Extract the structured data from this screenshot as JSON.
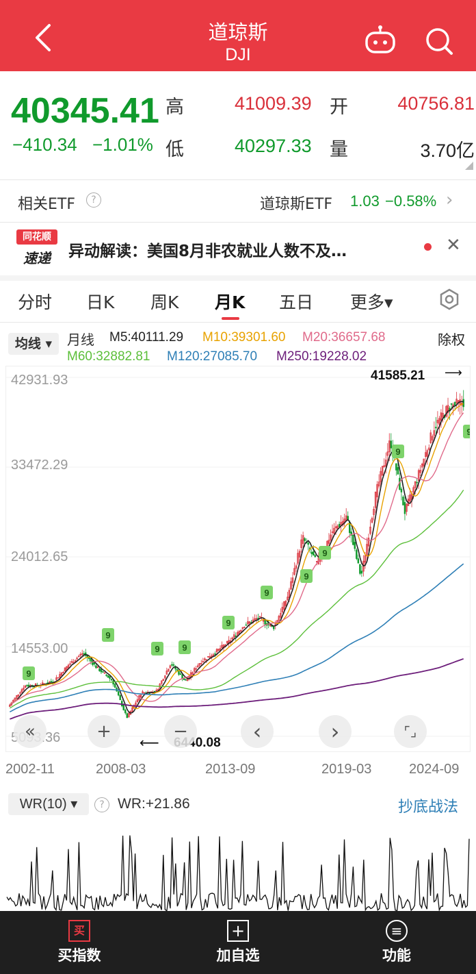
{
  "header": {
    "title": "道琼斯",
    "subtitle": "DJI"
  },
  "quote": {
    "price": "40345.41",
    "change": "−410.34",
    "change_pct": "−1.01%",
    "high_label": "高",
    "high": "41009.39",
    "low_label": "低",
    "low": "40297.33",
    "open_label": "开",
    "open": "40756.81",
    "volume_label": "量",
    "volume": "3.70亿"
  },
  "etf": {
    "label": "相关ETF",
    "name": "道琼斯ETF",
    "price": "1.03",
    "pct": "−0.58%"
  },
  "news": {
    "logo_top": "同花顺",
    "logo_bottom": "速递",
    "text": "异动解读：美国8月非农就业人数不及…"
  },
  "tabs": [
    "分时",
    "日K",
    "周K",
    "月K",
    "五日",
    "更多▾"
  ],
  "active_tab": "月K",
  "ma": {
    "selector": "均线",
    "period": "月线",
    "m5": "M5:40111.29",
    "m10": "M10:39301.60",
    "m20": "M20:36657.68",
    "m60": "M60:32882.81",
    "m120": "M120:27085.70",
    "m250": "M250:19228.02",
    "adjust": "除权"
  },
  "colors": {
    "m5": "#222222",
    "m10": "#e8a200",
    "m20": "#e06a8a",
    "m60": "#5cbf3a",
    "m120": "#2e7fb6",
    "m250": "#6c1d7a",
    "up": "#d9303a",
    "down": "#109a2c"
  },
  "chart_data": {
    "type": "candlestick",
    "title": "DJI 月K",
    "yticks": [
      "42931.93",
      "33472.29",
      "24012.65",
      "14553.00",
      "5093.36"
    ],
    "xticks": [
      "2002-11",
      "2008-03",
      "2013-09",
      "2019-03",
      "2024-09"
    ],
    "ylim": [
      5093.36,
      42931.93
    ],
    "annotations": {
      "high_marker": "41585.21",
      "low_marker": "6440.08"
    },
    "series": [
      {
        "name": "close",
        "x": [
          "2002-11",
          "2004-01",
          "2005-01",
          "2006-01",
          "2007-01",
          "2007-10",
          "2008-03",
          "2008-09",
          "2009-02",
          "2009-09",
          "2010-06",
          "2011-04",
          "2011-09",
          "2012-06",
          "2013-01",
          "2013-09",
          "2014-06",
          "2015-06",
          "2016-01",
          "2017-01",
          "2018-01",
          "2018-12",
          "2019-06",
          "2020-01",
          "2020-03",
          "2020-12",
          "2021-12",
          "2022-09",
          "2023-03",
          "2023-12",
          "2024-03",
          "2024-09"
        ],
        "y": [
          8400,
          10400,
          10500,
          10900,
          12600,
          13900,
          12260,
          11000,
          7060,
          9700,
          9800,
          12800,
          10900,
          12900,
          13900,
          15100,
          16800,
          17600,
          16500,
          19900,
          26100,
          23300,
          26600,
          28250,
          21900,
          30600,
          36300,
          28700,
          33000,
          37700,
          39800,
          40345
        ]
      }
    ]
  },
  "controls": {
    "rewind": "«",
    "zoom_in": "+",
    "zoom_out": "−",
    "prev": "‹",
    "next": "›",
    "fit": "⌜⌟"
  },
  "wr": {
    "selector": "WR(10) ▾",
    "value": "WR:+21.86",
    "strategy": "抄底战法"
  },
  "bottom_nav": [
    {
      "label": "买指数",
      "icon": "买"
    },
    {
      "label": "加自选",
      "icon": "+"
    },
    {
      "label": "功能",
      "icon": "≡"
    }
  ]
}
